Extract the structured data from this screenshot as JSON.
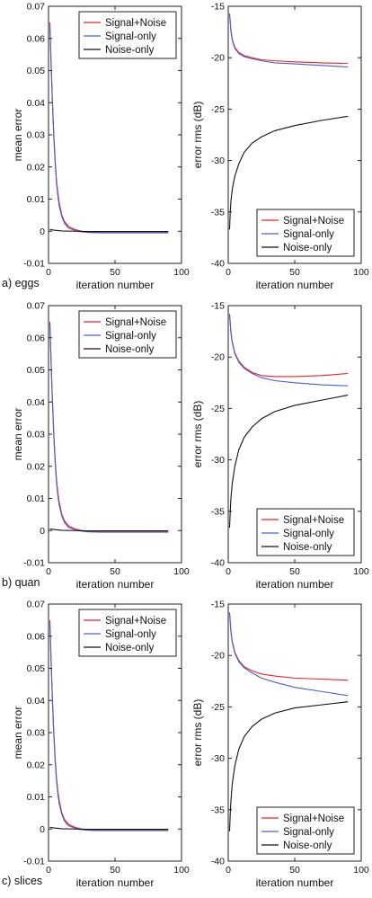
{
  "series_colors": {
    "Signal+Noise": "#e8212e",
    "Signal-only": "#4a5fc7",
    "Noise-only": "#111111"
  },
  "chart_data": [
    {
      "panel": "a) eggs",
      "type": "line",
      "position": "left",
      "xlabel": "iteration number",
      "ylabel": "mean error",
      "xlim": [
        0,
        100
      ],
      "ylim": [
        -0.01,
        0.07
      ],
      "xticks": [
        "0",
        "50",
        "100"
      ],
      "yticks": [
        "-0.01",
        "0",
        "0.01",
        "0.02",
        "0.03",
        "0.04",
        "0.05",
        "0.06",
        "0.07"
      ],
      "legend": "top-right",
      "series": [
        {
          "name": "Signal+Noise",
          "x": [
            1,
            2,
            3,
            4,
            5,
            6,
            7,
            8,
            10,
            12,
            15,
            20,
            25,
            30,
            40,
            60,
            90
          ],
          "y": [
            0.065,
            0.052,
            0.04,
            0.03,
            0.022,
            0.016,
            0.012,
            0.009,
            0.005,
            0.003,
            0.0015,
            0.0005,
            0.0,
            -0.0003,
            -0.0004,
            -0.0004,
            -0.0004
          ]
        },
        {
          "name": "Signal-only",
          "x": [
            1,
            2,
            3,
            4,
            5,
            6,
            7,
            8,
            10,
            12,
            15,
            20,
            25,
            30,
            40,
            60,
            90
          ],
          "y": [
            0.064,
            0.051,
            0.039,
            0.029,
            0.021,
            0.015,
            0.011,
            0.008,
            0.0045,
            0.0025,
            0.001,
            0.0002,
            -0.0002,
            -0.0004,
            -0.0005,
            -0.0005,
            -0.0005
          ]
        },
        {
          "name": "Noise-only",
          "x": [
            1,
            5,
            10,
            20,
            30,
            50,
            70,
            90
          ],
          "y": [
            0.0005,
            0.0003,
            0.0001,
            0.0,
            -0.0001,
            -0.0001,
            -0.0001,
            -0.0001
          ]
        }
      ]
    },
    {
      "panel": "",
      "type": "line",
      "position": "right",
      "xlabel": "iteration number",
      "ylabel": "error rms (dB)",
      "xlim": [
        0,
        100
      ],
      "ylim": [
        -40,
        -15
      ],
      "xticks": [
        "0",
        "50",
        "100"
      ],
      "yticks": [
        "-40",
        "-35",
        "-30",
        "-25",
        "-20",
        "-15"
      ],
      "legend": "bottom-right",
      "series": [
        {
          "name": "Signal+Noise",
          "x": [
            1,
            2,
            3,
            5,
            8,
            12,
            18,
            25,
            35,
            50,
            70,
            90
          ],
          "y": [
            -15.7,
            -17.3,
            -18.2,
            -19.0,
            -19.5,
            -19.8,
            -20.0,
            -20.2,
            -20.3,
            -20.4,
            -20.5,
            -20.55
          ]
        },
        {
          "name": "Signal-only",
          "x": [
            1,
            2,
            3,
            5,
            8,
            12,
            18,
            25,
            35,
            50,
            70,
            90
          ],
          "y": [
            -15.8,
            -17.4,
            -18.3,
            -19.1,
            -19.6,
            -19.9,
            -20.1,
            -20.3,
            -20.5,
            -20.6,
            -20.75,
            -20.9
          ]
        },
        {
          "name": "Noise-only",
          "x": [
            1,
            1.5,
            2,
            3,
            5,
            8,
            12,
            18,
            25,
            35,
            50,
            70,
            90
          ],
          "y": [
            -36.7,
            -35.0,
            -34.0,
            -32.8,
            -31.5,
            -30.3,
            -29.2,
            -28.3,
            -27.7,
            -27.1,
            -26.6,
            -26.1,
            -25.7
          ]
        }
      ]
    },
    {
      "panel": "b) quan",
      "type": "line",
      "position": "left",
      "xlabel": "iteration number",
      "ylabel": "mean error",
      "xlim": [
        0,
        100
      ],
      "ylim": [
        -0.01,
        0.07
      ],
      "xticks": [
        "0",
        "50",
        "100"
      ],
      "yticks": [
        "-0.01",
        "0",
        "0.01",
        "0.02",
        "0.03",
        "0.04",
        "0.05",
        "0.06",
        "0.07"
      ],
      "legend": "top-right",
      "series": [
        {
          "name": "Signal+Noise",
          "x": [
            1,
            2,
            3,
            4,
            5,
            6,
            7,
            8,
            10,
            12,
            15,
            20,
            25,
            30,
            40,
            60,
            90
          ],
          "y": [
            0.065,
            0.052,
            0.04,
            0.03,
            0.022,
            0.016,
            0.012,
            0.009,
            0.005,
            0.003,
            0.0015,
            0.0005,
            0.0,
            -0.0003,
            -0.0004,
            -0.0004,
            -0.0004
          ]
        },
        {
          "name": "Signal-only",
          "x": [
            1,
            2,
            3,
            4,
            5,
            6,
            7,
            8,
            10,
            12,
            15,
            20,
            25,
            30,
            40,
            60,
            90
          ],
          "y": [
            0.064,
            0.051,
            0.039,
            0.029,
            0.021,
            0.015,
            0.011,
            0.008,
            0.0045,
            0.0025,
            0.001,
            0.0002,
            -0.0002,
            -0.0004,
            -0.0005,
            -0.0005,
            -0.0005
          ]
        },
        {
          "name": "Noise-only",
          "x": [
            1,
            5,
            10,
            20,
            30,
            50,
            70,
            90
          ],
          "y": [
            0.0005,
            0.0003,
            0.0001,
            0.0,
            -0.0001,
            -0.0001,
            -0.0001,
            -0.0001
          ]
        }
      ]
    },
    {
      "panel": "",
      "type": "line",
      "position": "right",
      "xlabel": "iteration number",
      "ylabel": "error rms (dB)",
      "xlim": [
        0,
        100
      ],
      "ylim": [
        -40,
        -15
      ],
      "xticks": [
        "0",
        "50",
        "100"
      ],
      "yticks": [
        "-40",
        "-35",
        "-30",
        "-25",
        "-20",
        "-15"
      ],
      "legend": "bottom-right",
      "series": [
        {
          "name": "Signal+Noise",
          "x": [
            1,
            2,
            3,
            5,
            8,
            12,
            18,
            25,
            35,
            50,
            70,
            90
          ],
          "y": [
            -15.8,
            -17.5,
            -18.5,
            -19.6,
            -20.4,
            -21.0,
            -21.5,
            -21.8,
            -21.9,
            -21.9,
            -21.8,
            -21.6
          ]
        },
        {
          "name": "Signal-only",
          "x": [
            1,
            2,
            3,
            5,
            8,
            12,
            18,
            25,
            35,
            50,
            70,
            90
          ],
          "y": [
            -15.9,
            -17.6,
            -18.6,
            -19.7,
            -20.5,
            -21.1,
            -21.6,
            -22.0,
            -22.3,
            -22.5,
            -22.7,
            -22.8
          ]
        },
        {
          "name": "Noise-only",
          "x": [
            1,
            1.5,
            2,
            3,
            5,
            8,
            12,
            18,
            25,
            35,
            50,
            70,
            90
          ],
          "y": [
            -36.6,
            -35.0,
            -33.8,
            -32.3,
            -30.6,
            -29.0,
            -27.8,
            -26.8,
            -26.0,
            -25.3,
            -24.7,
            -24.2,
            -23.7
          ]
        }
      ]
    },
    {
      "panel": "c) slices",
      "type": "line",
      "position": "left",
      "xlabel": "iteration number",
      "ylabel": "mean error",
      "xlim": [
        0,
        100
      ],
      "ylim": [
        -0.01,
        0.07
      ],
      "xticks": [
        "0",
        "50",
        "100"
      ],
      "yticks": [
        "-0.01",
        "0",
        "0.01",
        "0.02",
        "0.03",
        "0.04",
        "0.05",
        "0.06",
        "0.07"
      ],
      "legend": "top-right",
      "series": [
        {
          "name": "Signal+Noise",
          "x": [
            1,
            2,
            3,
            4,
            5,
            6,
            7,
            8,
            10,
            12,
            15,
            20,
            25,
            30,
            40,
            60,
            90
          ],
          "y": [
            0.065,
            0.052,
            0.04,
            0.03,
            0.022,
            0.016,
            0.012,
            0.009,
            0.005,
            0.003,
            0.0015,
            0.0005,
            0.0,
            -0.0003,
            -0.0004,
            -0.0004,
            -0.0004
          ]
        },
        {
          "name": "Signal-only",
          "x": [
            1,
            2,
            3,
            4,
            5,
            6,
            7,
            8,
            10,
            12,
            15,
            20,
            25,
            30,
            40,
            60,
            90
          ],
          "y": [
            0.064,
            0.051,
            0.039,
            0.029,
            0.021,
            0.015,
            0.011,
            0.008,
            0.0045,
            0.0025,
            0.001,
            0.0002,
            -0.0002,
            -0.0004,
            -0.0005,
            -0.0005,
            -0.0005
          ]
        },
        {
          "name": "Noise-only",
          "x": [
            1,
            5,
            10,
            20,
            30,
            50,
            70,
            90
          ],
          "y": [
            0.0005,
            0.0003,
            0.0001,
            0.0,
            -0.0001,
            -0.0001,
            -0.0001,
            -0.0001
          ]
        }
      ]
    },
    {
      "panel": "",
      "type": "line",
      "position": "right",
      "xlabel": "iteration number",
      "ylabel": "error rms (dB)",
      "xlim": [
        0,
        100
      ],
      "ylim": [
        -40,
        -15
      ],
      "xticks": [
        "0",
        "50",
        "100"
      ],
      "yticks": [
        "-40",
        "-35",
        "-30",
        "-25",
        "-20",
        "-15"
      ],
      "legend": "bottom-right",
      "series": [
        {
          "name": "Signal+Noise",
          "x": [
            1,
            2,
            3,
            5,
            8,
            12,
            18,
            25,
            35,
            50,
            70,
            90
          ],
          "y": [
            -15.8,
            -17.6,
            -18.6,
            -19.7,
            -20.5,
            -21.1,
            -21.5,
            -21.8,
            -22.0,
            -22.2,
            -22.3,
            -22.4
          ]
        },
        {
          "name": "Signal-only",
          "x": [
            1,
            2,
            3,
            5,
            8,
            12,
            18,
            25,
            35,
            50,
            70,
            90
          ],
          "y": [
            -15.9,
            -17.7,
            -18.7,
            -19.8,
            -20.6,
            -21.2,
            -21.7,
            -22.2,
            -22.6,
            -23.1,
            -23.5,
            -23.9
          ]
        },
        {
          "name": "Noise-only",
          "x": [
            1,
            1.5,
            2,
            3,
            5,
            8,
            12,
            18,
            25,
            35,
            50,
            70,
            90
          ],
          "y": [
            -37.1,
            -35.4,
            -34.2,
            -32.5,
            -30.7,
            -29.1,
            -27.9,
            -26.9,
            -26.2,
            -25.6,
            -25.1,
            -24.8,
            -24.5
          ]
        }
      ]
    }
  ]
}
